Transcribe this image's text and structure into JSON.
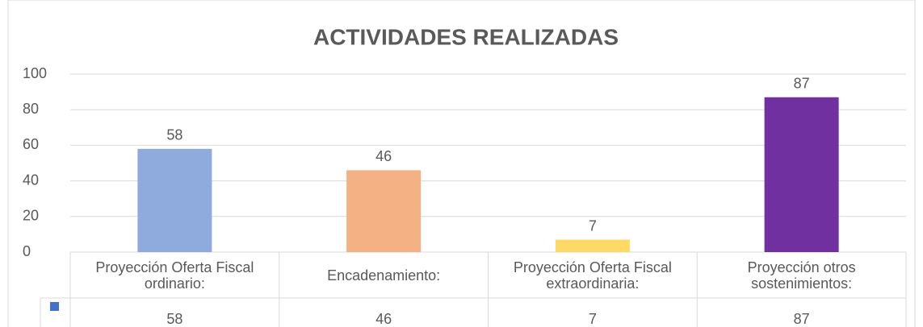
{
  "chart_data": {
    "type": "bar",
    "title": "ACTIVIDADES REALIZADAS",
    "categories": [
      "Proyección Oferta Fiscal ordinario:",
      "Encadenamiento:",
      "Proyección Oferta Fiscal extraordinaria:",
      "Proyección otros sostenimientos:"
    ],
    "values": [
      58,
      46,
      7,
      87
    ],
    "colors": [
      "#8FAADC",
      "#F4B183",
      "#FFD966",
      "#7030A0"
    ],
    "legend_color": "#4472C4",
    "ylim": [
      0,
      100
    ],
    "yticks": [
      0,
      20,
      40,
      60,
      80,
      100
    ],
    "grid": true
  }
}
